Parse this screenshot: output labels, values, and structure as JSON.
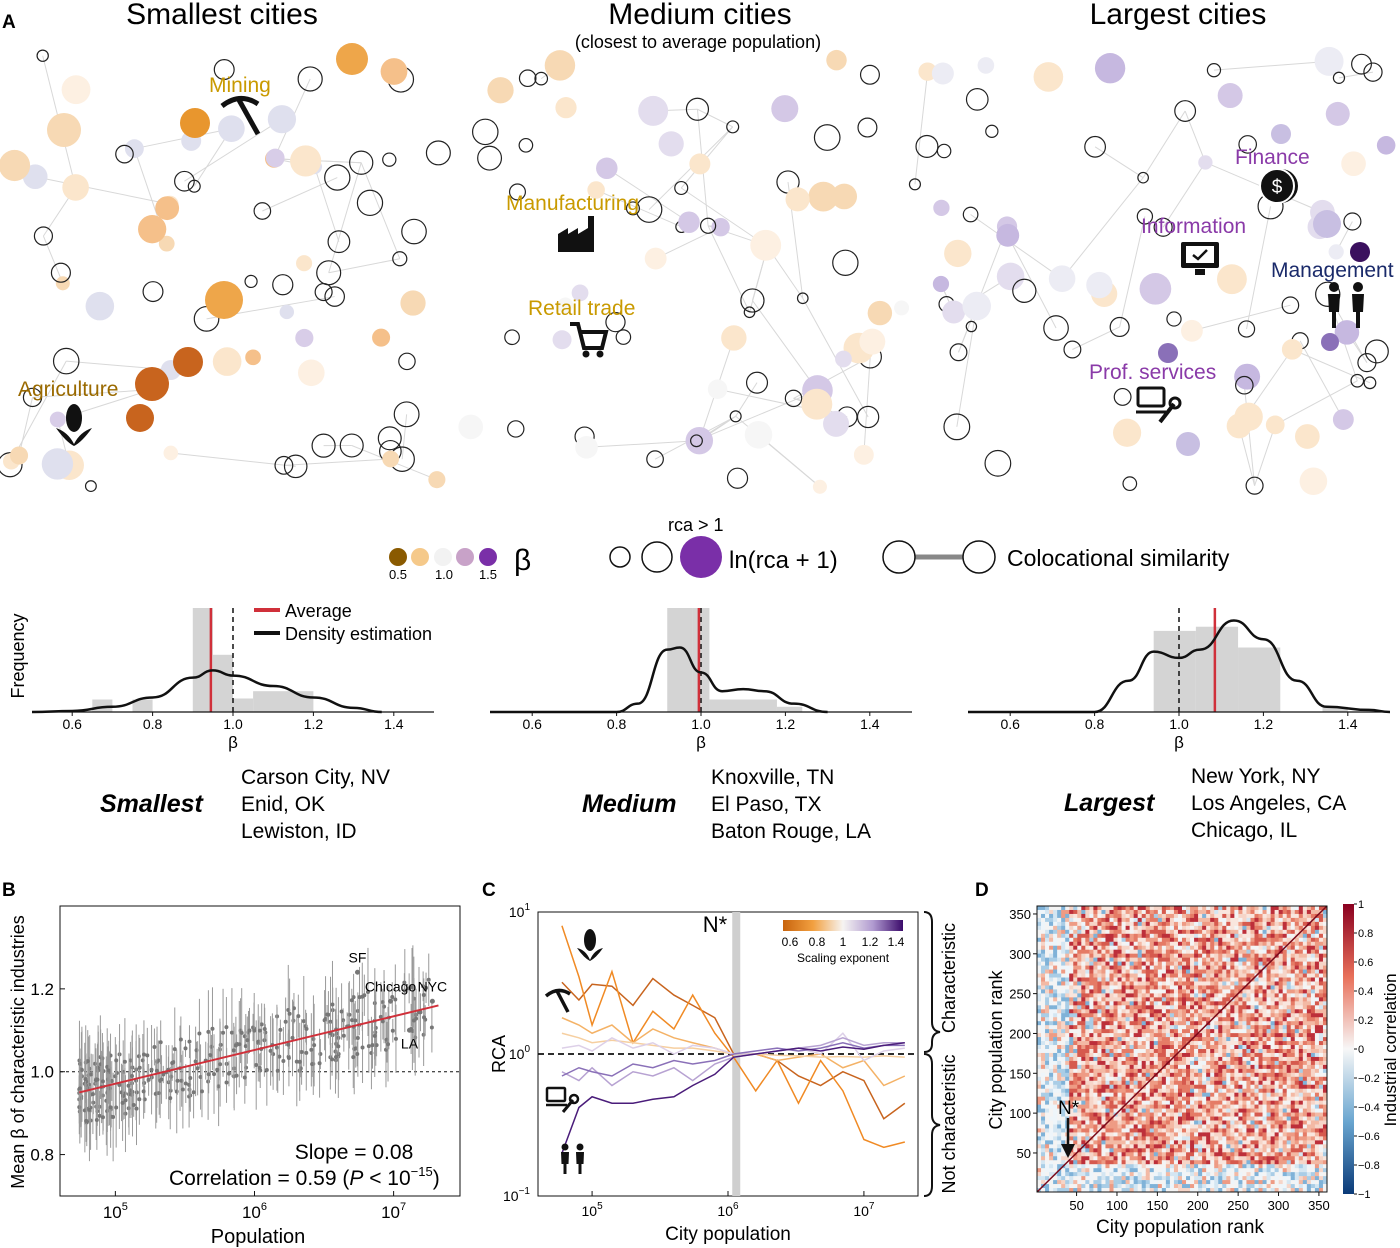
{
  "panel_labels": {
    "a": "A",
    "b": "B",
    "c": "C",
    "d": "D"
  },
  "panel_a": {
    "networks": [
      {
        "title": "Smallest cities",
        "subtitle": "",
        "annotations": [
          {
            "label": "Mining",
            "icon": "pickaxe-icon"
          },
          {
            "label": "Agriculture",
            "icon": "corn-icon"
          }
        ],
        "example_cities": {
          "group": "Smallest",
          "cities": [
            "Carson City, NV",
            "Enid, OK",
            "Lewiston, ID"
          ]
        }
      },
      {
        "title": "Medium cities",
        "subtitle": "(closest to average population)",
        "annotations": [
          {
            "label": "Manufacturing",
            "icon": "factory-icon"
          },
          {
            "label": "Retail trade",
            "icon": "cart-icon"
          }
        ],
        "example_cities": {
          "group": "Medium",
          "cities": [
            "Knoxville, TN",
            "El Paso, TX",
            "Baton Rouge, LA"
          ]
        }
      },
      {
        "title": "Largest cities",
        "subtitle": "",
        "annotations": [
          {
            "label": "Finance",
            "icon": "dollar-coin-icon"
          },
          {
            "label": "Information",
            "icon": "monitor-icon"
          },
          {
            "label": "Management",
            "icon": "people-icon"
          },
          {
            "label": "Prof. services",
            "icon": "laptop-wrench-icon"
          }
        ],
        "example_cities": {
          "group": "Largest",
          "cities": [
            "New York, NY",
            "Los Angeles, CA",
            "Chicago, IL"
          ]
        }
      }
    ],
    "legend": {
      "beta_symbol": "β",
      "beta_ticks": [
        "0.5",
        "1.0",
        "1.5"
      ],
      "beta_colors": [
        "#8a5a00",
        "#f5c98a",
        "#f2f2f2",
        "#c8a2c8",
        "#7a2fa8"
      ],
      "rca_label": "rca > 1",
      "rca_size_label": "ln(rca + 1)",
      "edge_label": "Colocational similarity"
    },
    "histograms": {
      "ylabel": "Frequency",
      "xlabel": "β",
      "legend": [
        "Average",
        "Density estimation"
      ],
      "average_color": "#d0303a"
    }
  },
  "chart_data": [
    {
      "type": "histogram",
      "title": "Smallest cities",
      "xlabel": "β",
      "ylabel": "Frequency",
      "xlim": [
        0.5,
        1.5
      ],
      "xticks": [
        "0.6",
        "0.8",
        "1.0",
        "1.2",
        "1.4"
      ],
      "bins": [
        [
          0.65,
          0.7,
          0.12
        ],
        [
          0.75,
          0.8,
          0.12
        ],
        [
          0.9,
          0.95,
          1.0
        ],
        [
          0.95,
          1.0,
          0.55
        ],
        [
          1.0,
          1.05,
          0.13
        ],
        [
          1.05,
          1.2,
          0.2
        ]
      ],
      "average": 0.945,
      "reference": 1.0,
      "density": [
        [
          0.5,
          0.0
        ],
        [
          0.6,
          0.01
        ],
        [
          0.7,
          0.05
        ],
        [
          0.8,
          0.14
        ],
        [
          0.9,
          0.33
        ],
        [
          0.95,
          0.4
        ],
        [
          1.0,
          0.35
        ],
        [
          1.1,
          0.25
        ],
        [
          1.2,
          0.14
        ],
        [
          1.3,
          0.04
        ],
        [
          1.37,
          0.0
        ]
      ]
    },
    {
      "type": "histogram",
      "title": "Medium cities",
      "xlabel": "β",
      "ylabel": "Frequency",
      "xlim": [
        0.5,
        1.5
      ],
      "xticks": [
        "0.6",
        "0.8",
        "1.0",
        "1.2",
        "1.4"
      ],
      "bins": [
        [
          0.92,
          0.98,
          1.0
        ],
        [
          0.98,
          1.02,
          1.0
        ],
        [
          1.02,
          1.18,
          0.12
        ],
        [
          1.18,
          1.24,
          0.05
        ]
      ],
      "average": 0.995,
      "reference": 1.0,
      "density": [
        [
          0.5,
          0.0
        ],
        [
          0.8,
          0.0
        ],
        [
          0.85,
          0.08
        ],
        [
          0.92,
          0.6
        ],
        [
          0.95,
          0.62
        ],
        [
          1.0,
          0.38
        ],
        [
          1.05,
          0.2
        ],
        [
          1.1,
          0.22
        ],
        [
          1.15,
          0.2
        ],
        [
          1.22,
          0.08
        ],
        [
          1.3,
          0.0
        ]
      ]
    },
    {
      "type": "histogram",
      "title": "Largest cities",
      "xlabel": "β",
      "ylabel": "Frequency",
      "xlim": [
        0.5,
        1.5
      ],
      "xticks": [
        "0.6",
        "0.8",
        "1.0",
        "1.2",
        "1.4"
      ],
      "bins": [
        [
          0.94,
          1.04,
          0.78
        ],
        [
          1.04,
          1.14,
          0.82
        ],
        [
          1.14,
          1.24,
          0.62
        ],
        [
          1.34,
          1.4,
          0.05
        ]
      ],
      "average": 1.085,
      "reference": 1.0,
      "density": [
        [
          0.5,
          0.0
        ],
        [
          0.8,
          0.0
        ],
        [
          0.88,
          0.3
        ],
        [
          0.94,
          0.58
        ],
        [
          1.0,
          0.52
        ],
        [
          1.05,
          0.6
        ],
        [
          1.13,
          0.88
        ],
        [
          1.2,
          0.7
        ],
        [
          1.28,
          0.3
        ],
        [
          1.35,
          0.05
        ],
        [
          1.45,
          0.02
        ],
        [
          1.5,
          0.0
        ]
      ]
    },
    {
      "type": "scatter",
      "panel": "B",
      "xlabel": "Population",
      "ylabel": "Mean β of characteristic industries",
      "xscale": "log",
      "xlim": [
        40000,
        30000000
      ],
      "ylim": [
        0.7,
        1.4
      ],
      "xticks": [
        100000,
        1000000,
        10000000
      ],
      "xticklabels": [
        "10",
        "10",
        "10"
      ],
      "xtick_exponents": [
        "5",
        "6",
        "7"
      ],
      "yticks": [
        "0.8",
        "1.0",
        "1.2"
      ],
      "fit": {
        "slope": 0.08,
        "from": [
          55000,
          0.95
        ],
        "to": [
          21000000,
          1.16
        ]
      },
      "labeled_points": [
        {
          "label": "SF",
          "x": 5500000,
          "y": 1.24
        },
        {
          "label": "Chicago",
          "x": 9500000,
          "y": 1.17
        },
        {
          "label": "NYC",
          "x": 19000000,
          "y": 1.17
        },
        {
          "label": "LA",
          "x": 13000000,
          "y": 1.1
        }
      ],
      "stats": {
        "slope_text": "Slope = 0.08",
        "corr_text": "Correlation = 0.59 (",
        "p_text": "P",
        "p_rest": " < 10",
        "p_exp": "−15",
        "close": ")"
      }
    },
    {
      "type": "line",
      "panel": "C",
      "xlabel": "City population",
      "ylabel": "RCA",
      "xscale": "log",
      "yscale": "log",
      "xlim": [
        40000,
        25000000
      ],
      "ylim": [
        0.1,
        10
      ],
      "yticklabels": [
        [
          "10",
          "−1"
        ],
        [
          "10",
          "0"
        ],
        [
          "10",
          "1"
        ]
      ],
      "xticklabels": [
        [
          "10",
          "5"
        ],
        [
          "10",
          "6"
        ],
        [
          "10",
          "7"
        ]
      ],
      "nstar_label": "N*",
      "nstar_x": 1150000,
      "colorbar": {
        "label": "Scaling exponent",
        "ticks": [
          "0.6",
          "0.8",
          "1",
          "1.2",
          "1.4"
        ]
      },
      "brace_labels": [
        "Characteristic",
        "Not characteristic"
      ],
      "series_x": [
        60000,
        80000,
        100000,
        140000,
        200000,
        280000,
        400000,
        550000,
        800000,
        1100000,
        1600000,
        2300000,
        3300000,
        4800000,
        7000000,
        10000000,
        14000000,
        20000000
      ],
      "series": [
        {
          "icon": "corn-icon",
          "color": "#c8641e",
          "values": [
            3.2,
            2.4,
            3.1,
            3.0,
            2.2,
            3.4,
            2.6,
            2.2,
            1.8,
            1.0,
            1.0,
            0.9,
            0.7,
            0.6,
            0.75,
            0.65,
            0.35,
            0.45
          ]
        },
        {
          "icon": "pickaxe-icon",
          "color": "#f08a24",
          "values": [
            8.0,
            3.5,
            1.6,
            3.8,
            1.2,
            2.0,
            1.5,
            2.6,
            1.4,
            0.95,
            0.55,
            0.9,
            0.45,
            0.9,
            0.55,
            0.25,
            0.22,
            0.24
          ]
        },
        {
          "color": "#f4b266",
          "values": [
            1.8,
            1.6,
            1.4,
            1.6,
            1.2,
            1.5,
            1.3,
            1.2,
            1.1,
            1.0,
            1.0,
            0.9,
            0.95,
            1.0,
            0.8,
            0.9,
            0.6,
            0.7
          ]
        },
        {
          "color": "#f6cfa0",
          "values": [
            1.4,
            1.3,
            1.2,
            1.25,
            1.2,
            1.15,
            1.1,
            1.1,
            1.05,
            1.0,
            1.0,
            0.98,
            0.97,
            0.95,
            0.96,
            0.95,
            0.97,
            0.95
          ]
        },
        {
          "color": "#ddd0e8",
          "values": [
            1.1,
            1.15,
            1.05,
            1.3,
            1.1,
            1.2,
            1.0,
            1.15,
            1.1,
            1.0,
            1.0,
            1.05,
            1.1,
            1.0,
            1.4,
            0.9,
            1.05,
            1.1
          ]
        },
        {
          "icon": "laptop-wrench-icon",
          "color": "#b7a2d2",
          "values": [
            0.75,
            0.65,
            0.8,
            0.6,
            0.75,
            0.7,
            0.8,
            0.65,
            0.85,
            0.95,
            1.0,
            1.05,
            1.1,
            1.15,
            1.3,
            1.15,
            1.2,
            1.2
          ]
        },
        {
          "color": "#8a70b8",
          "values": [
            0.7,
            0.8,
            0.75,
            0.7,
            0.85,
            0.8,
            0.9,
            0.85,
            0.9,
            1.0,
            1.05,
            1.1,
            1.05,
            1.1,
            1.2,
            1.1,
            1.15,
            1.15
          ]
        },
        {
          "icon": "people-icon",
          "color": "#4a1c7a",
          "values": [
            0.2,
            0.42,
            0.5,
            0.45,
            0.45,
            0.48,
            0.5,
            0.6,
            0.72,
            0.95,
            1.0,
            1.05,
            1.1,
            1.05,
            1.12,
            1.08,
            1.15,
            1.2
          ]
        }
      ]
    },
    {
      "type": "heatmap",
      "panel": "D",
      "xlabel": "City population rank",
      "ylabel": "City population rank",
      "xlim": [
        1,
        360
      ],
      "ylim": [
        1,
        360
      ],
      "xticks": [
        "50",
        "100",
        "150",
        "200",
        "250",
        "300",
        "350"
      ],
      "yticks": [
        "50",
        "100",
        "150",
        "200",
        "250",
        "300",
        "350"
      ],
      "colorbar": {
        "label": "Industrial correlation",
        "ticks": [
          "1",
          "0.8",
          "0.6",
          "0.4",
          "0.2",
          "0",
          "−0.2",
          "−0.4",
          "−0.6",
          "−0.8",
          "−1"
        ]
      },
      "annotation": {
        "label": "N*",
        "rank": 40
      }
    }
  ]
}
